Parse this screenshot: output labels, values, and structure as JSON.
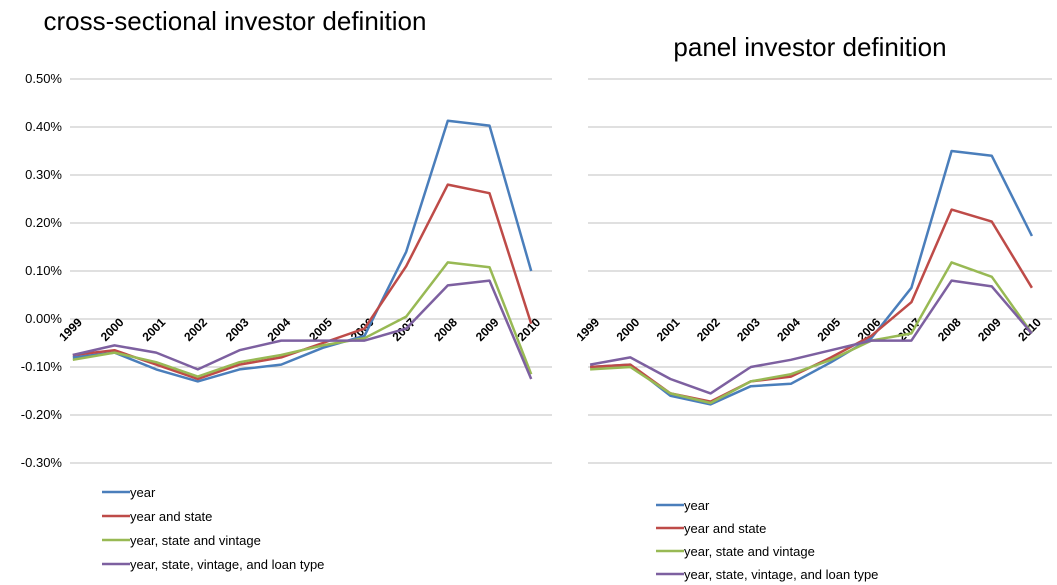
{
  "chart_data": [
    {
      "type": "line",
      "title": "cross-sectional investor definition",
      "categories": [
        "1999",
        "2000",
        "2001",
        "2002",
        "2003",
        "2004",
        "2005",
        "2006",
        "2007",
        "2008",
        "2009",
        "2010"
      ],
      "ylim": [
        -0.3,
        0.5
      ],
      "yticks": [
        {
          "value": -0.3,
          "label": "-0.30%"
        },
        {
          "value": -0.2,
          "label": "-0.20%"
        },
        {
          "value": -0.1,
          "label": "-0.10%"
        },
        {
          "value": 0,
          "label": "0.00%"
        },
        {
          "value": 0.1,
          "label": "0.10%"
        },
        {
          "value": 0.2,
          "label": "0.20%"
        },
        {
          "value": 0.3,
          "label": "0.30%"
        },
        {
          "value": 0.4,
          "label": "0.40%"
        },
        {
          "value": 0.5,
          "label": "0.50%"
        }
      ],
      "grid": true,
      "series": [
        {
          "name": "year",
          "color": "#4a7ebb",
          "values": [
            -0.08,
            -0.07,
            -0.105,
            -0.13,
            -0.105,
            -0.095,
            -0.06,
            -0.035,
            0.14,
            0.413,
            0.403,
            0.1
          ]
        },
        {
          "name": "year and state",
          "color": "#be4b48",
          "values": [
            -0.075,
            -0.065,
            -0.095,
            -0.125,
            -0.095,
            -0.08,
            -0.05,
            -0.02,
            0.11,
            0.28,
            0.262,
            -0.01
          ]
        },
        {
          "name": "year, state and vintage",
          "color": "#98b954",
          "values": [
            -0.085,
            -0.07,
            -0.09,
            -0.12,
            -0.09,
            -0.075,
            -0.055,
            -0.04,
            0.005,
            0.118,
            0.108,
            -0.115
          ]
        },
        {
          "name": "year, state, vintage, and loan type",
          "color": "#7d60a0",
          "values": [
            -0.075,
            -0.055,
            -0.07,
            -0.105,
            -0.065,
            -0.045,
            -0.045,
            -0.045,
            -0.02,
            0.07,
            0.08,
            -0.125
          ]
        }
      ]
    },
    {
      "type": "line",
      "title": "panel investor definition",
      "categories": [
        "1999",
        "2000",
        "2001",
        "2002",
        "2003",
        "2004",
        "2005",
        "2006",
        "2007",
        "2008",
        "2009",
        "2010"
      ],
      "ylim": [
        -0.3,
        0.5
      ],
      "yticks": [
        -0.3,
        -0.2,
        -0.1,
        0,
        0.1,
        0.2,
        0.3,
        0.4,
        0.5
      ],
      "ytick_labels": false,
      "grid": true,
      "series": [
        {
          "name": "year",
          "color": "#4a7ebb",
          "values": [
            -0.1,
            -0.095,
            -0.16,
            -0.178,
            -0.14,
            -0.135,
            -0.09,
            -0.04,
            0.065,
            0.35,
            0.34,
            0.173
          ]
        },
        {
          "name": "year and state",
          "color": "#be4b48",
          "values": [
            -0.1,
            -0.095,
            -0.155,
            -0.172,
            -0.13,
            -0.12,
            -0.08,
            -0.035,
            0.035,
            0.228,
            0.203,
            0.065
          ]
        },
        {
          "name": "year, state and vintage",
          "color": "#98b954",
          "values": [
            -0.105,
            -0.1,
            -0.155,
            -0.175,
            -0.13,
            -0.115,
            -0.085,
            -0.045,
            -0.03,
            0.118,
            0.088,
            -0.03
          ]
        },
        {
          "name": "year, state, vintage, and loan type",
          "color": "#7d60a0",
          "values": [
            -0.095,
            -0.08,
            -0.125,
            -0.155,
            -0.1,
            -0.085,
            -0.065,
            -0.045,
            -0.045,
            0.08,
            0.068,
            -0.03
          ]
        }
      ]
    }
  ]
}
